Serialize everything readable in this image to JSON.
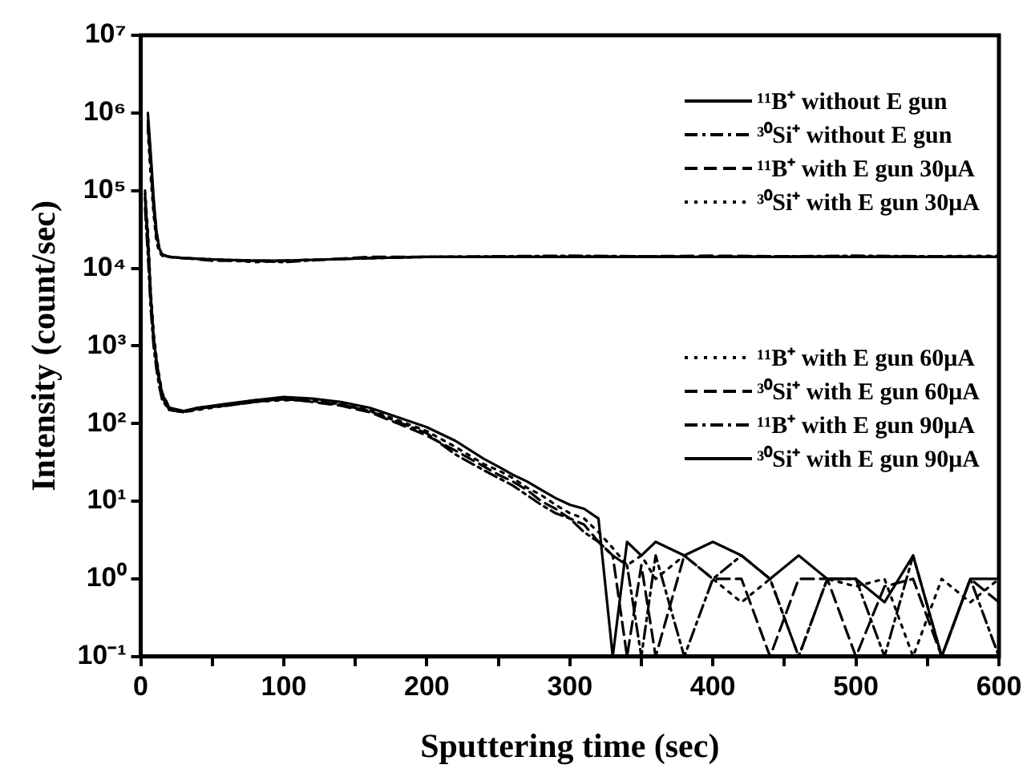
{
  "chart_data": {
    "type": "line",
    "xlabel": "Sputtering time (sec)",
    "ylabel": "Intensity (count/sec)",
    "log": "y",
    "legend": "top right",
    "grid": false,
    "marker": "none",
    "xlim": [
      0,
      600
    ],
    "xticks": [
      0,
      {
        "value": 50,
        "label": null
      },
      100,
      {
        "value": 150,
        "label": null
      },
      200,
      {
        "value": 250,
        "label": null
      },
      300,
      {
        "value": 350,
        "label": null
      },
      400,
      {
        "value": 450,
        "label": null
      },
      500,
      {
        "value": 550,
        "label": null
      },
      600
    ],
    "ylim": [
      0.1,
      10000000
    ],
    "yticks": [
      {
        "value": 0.1,
        "label": "10⁻¹"
      },
      {
        "value": 1,
        "label": "10⁰"
      },
      {
        "value": 10,
        "label": "10¹"
      },
      {
        "value": 100,
        "label": "10²"
      },
      {
        "value": 1000,
        "label": "10³"
      },
      {
        "value": 10000,
        "label": "10⁴"
      },
      {
        "value": 100000,
        "label": "10⁵"
      },
      {
        "value": 1000000,
        "label": "10⁶"
      },
      {
        "value": 10000000,
        "label": "10⁷"
      }
    ],
    "x": [
      5,
      7,
      9,
      11,
      13,
      15,
      20,
      30,
      50,
      80,
      100,
      130,
      160,
      200,
      300,
      400,
      500,
      600
    ],
    "series": [
      {
        "name": "¹¹B⁺ without E gun",
        "color": "#000000",
        "line_style": "solid",
        "values": [
          1000000,
          300000,
          80000,
          30000,
          18000,
          15000,
          14000,
          13500,
          13000,
          12500,
          12500,
          13000,
          13500,
          14000,
          14000,
          14000,
          14000,
          14000
        ]
      },
      {
        "name": "³⁰Si⁺ without E gun",
        "color": "#000000",
        "line_style": "dashdot",
        "values": [
          700000,
          200000,
          60000,
          25000,
          17000,
          15000,
          14000,
          13500,
          13000,
          12500,
          12000,
          13000,
          13500,
          14000,
          14500,
          14000,
          14500,
          14000
        ]
      },
      {
        "name": "¹¹B⁺ with E gun 30μA",
        "color": "#000000",
        "line_style": "dashed",
        "values": [
          800000,
          250000,
          70000,
          28000,
          18000,
          15000,
          14000,
          13500,
          12500,
          12500,
          12500,
          13000,
          14000,
          14000,
          14000,
          14500,
          14000,
          14000
        ]
      },
      {
        "name": "³⁰Si⁺ with E gun 30μA",
        "color": "#000000",
        "line_style": "dotted",
        "values": [
          600000,
          150000,
          50000,
          22000,
          16000,
          14500,
          14000,
          13500,
          13000,
          12000,
          12500,
          13000,
          13500,
          14000,
          14000,
          14000,
          14000,
          14500
        ]
      },
      {
        "name": "¹¹B⁺ with E gun 60μA",
        "color": "#000000",
        "line_style": "dotted",
        "x": [
          3,
          5,
          7,
          9,
          11,
          13,
          15,
          20,
          30,
          40,
          60,
          80,
          100,
          120,
          140,
          160,
          180,
          200,
          220,
          240,
          250,
          260,
          270,
          280,
          290,
          300,
          310,
          320,
          330,
          340,
          350,
          360,
          380,
          400,
          420,
          440,
          460,
          480,
          500,
          520,
          540,
          560,
          580,
          600
        ],
        "values": [
          100000,
          30000,
          5000,
          1500,
          700,
          400,
          250,
          160,
          140,
          150,
          170,
          190,
          200,
          200,
          180,
          150,
          110,
          80,
          50,
          30,
          25,
          20,
          15,
          12,
          9,
          7,
          6,
          4,
          2.5,
          1.5,
          2,
          1,
          2,
          1,
          0.5,
          1,
          0.1,
          1,
          0.8,
          1,
          0.1,
          1,
          0.5,
          1
        ]
      },
      {
        "name": "³⁰Si⁺ with E gun 60μA",
        "color": "#000000",
        "line_style": "dashed",
        "x": [
          3,
          5,
          7,
          9,
          11,
          13,
          15,
          20,
          30,
          40,
          60,
          80,
          100,
          120,
          140,
          160,
          180,
          200,
          220,
          240,
          250,
          260,
          270,
          280,
          290,
          300,
          310,
          320,
          330,
          340,
          350,
          360,
          380,
          400,
          420,
          440,
          460,
          480,
          500,
          520,
          540,
          560,
          580,
          600
        ],
        "values": [
          80000,
          20000,
          4000,
          1200,
          600,
          350,
          220,
          150,
          140,
          160,
          170,
          190,
          210,
          190,
          170,
          140,
          100,
          70,
          45,
          28,
          22,
          18,
          14,
          10,
          8,
          6,
          5,
          3,
          2,
          0.1,
          1.5,
          0.1,
          2,
          1,
          1,
          0.1,
          1,
          1,
          0.1,
          0.8,
          1,
          0.1,
          1,
          0.5
        ]
      },
      {
        "name": "¹¹B⁺ with E gun 90μA",
        "color": "#000000",
        "line_style": "dashdot",
        "x": [
          3,
          5,
          7,
          9,
          11,
          13,
          15,
          20,
          30,
          40,
          60,
          80,
          100,
          120,
          140,
          160,
          180,
          200,
          220,
          240,
          250,
          260,
          270,
          280,
          290,
          300,
          310,
          320,
          330,
          340,
          350,
          360,
          380,
          400,
          420,
          440,
          460,
          480,
          500,
          520,
          540,
          560,
          580,
          600
        ],
        "values": [
          60000,
          15000,
          3000,
          1000,
          500,
          300,
          200,
          150,
          140,
          155,
          175,
          200,
          205,
          195,
          175,
          145,
          105,
          75,
          40,
          25,
          20,
          16,
          12,
          9,
          7,
          6,
          4,
          3,
          2,
          1.5,
          0.1,
          2,
          0.1,
          1,
          2,
          1,
          0.1,
          1,
          1,
          0.1,
          2,
          0.1,
          1,
          0.1
        ]
      },
      {
        "name": "³⁰Si⁺ with E gun 90μA",
        "color": "#000000",
        "line_style": "solid",
        "x": [
          3,
          5,
          7,
          9,
          11,
          13,
          15,
          20,
          30,
          40,
          60,
          80,
          100,
          120,
          140,
          160,
          180,
          200,
          220,
          240,
          250,
          260,
          270,
          280,
          290,
          300,
          310,
          320,
          330,
          340,
          350,
          360,
          380,
          400,
          420,
          440,
          460,
          480,
          500,
          520,
          540,
          560,
          580,
          600
        ],
        "values": [
          90000,
          25000,
          4500,
          1300,
          650,
          380,
          240,
          160,
          145,
          160,
          180,
          200,
          220,
          210,
          190,
          160,
          120,
          90,
          60,
          35,
          28,
          22,
          18,
          14,
          11,
          9,
          8,
          6,
          0.1,
          3,
          2,
          3,
          2,
          3,
          2,
          1,
          2,
          1,
          1,
          0.5,
          2,
          0.1,
          1,
          1
        ]
      }
    ]
  }
}
